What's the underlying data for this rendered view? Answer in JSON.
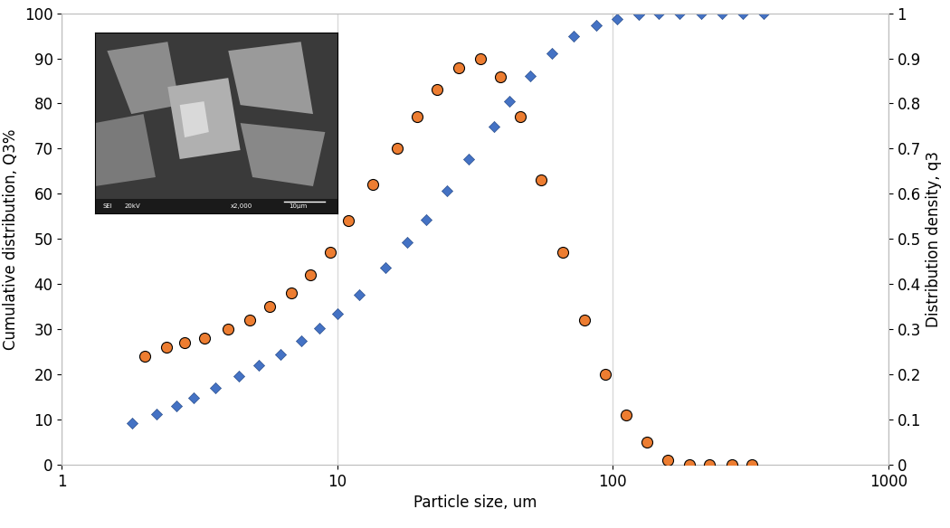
{
  "chart_data": {
    "type": "scatter",
    "x_label": "Particle size, um",
    "y_label": "Cumulative distribution, Q3%",
    "y2_label": "Distribution density, q3",
    "log": "x",
    "grid": "x",
    "xlim": [
      1,
      1000
    ],
    "xticks": [
      1,
      10,
      100,
      1000
    ],
    "ylim": [
      0,
      100
    ],
    "yticks": [
      0,
      10,
      20,
      30,
      40,
      50,
      60,
      70,
      80,
      90,
      100
    ],
    "y2lim": [
      0,
      1
    ],
    "y2ticks": [
      0,
      0.1,
      0.2,
      0.3,
      0.4,
      0.5,
      0.6,
      0.7,
      0.8,
      0.9,
      1
    ],
    "series": [
      {
        "color": "#4472c4",
        "marker": "diamond",
        "axis": "y",
        "x": [
          1.8,
          2.2,
          2.6,
          3.0,
          3.6,
          4.4,
          5.2,
          6.2,
          7.4,
          8.6,
          10,
          12,
          15,
          18,
          21,
          25,
          30,
          37,
          42,
          50,
          60,
          72,
          87,
          104,
          124,
          147,
          175,
          209,
          249,
          297,
          352
        ],
        "values": [
          9.2,
          11.2,
          13,
          14.8,
          17,
          19.6,
          22,
          24.5,
          27.5,
          30.2,
          33.5,
          37.7,
          43.7,
          49.2,
          54.3,
          60.6,
          67.6,
          74.8,
          80.4,
          86.2,
          91.2,
          94.9,
          97.4,
          98.8,
          99.7,
          100,
          100,
          100,
          100,
          100,
          100
        ]
      },
      {
        "color": "#ed7d31",
        "marker": "circle",
        "axis": "y2",
        "x": [
          2.0,
          2.4,
          2.8,
          3.3,
          4.0,
          4.8,
          5.7,
          6.8,
          8.0,
          9.4,
          11,
          13.5,
          16.5,
          19.5,
          23,
          27.5,
          33,
          39,
          46,
          55,
          66,
          79,
          94,
          112,
          133,
          158,
          190,
          225,
          270,
          320
        ],
        "values": [
          0.24,
          0.26,
          0.27,
          0.28,
          0.3,
          0.32,
          0.35,
          0.38,
          0.42,
          0.47,
          0.54,
          0.62,
          0.7,
          0.77,
          0.83,
          0.88,
          0.9,
          0.86,
          0.77,
          0.63,
          0.47,
          0.32,
          0.2,
          0.11,
          0.05,
          0.01,
          0,
          0,
          0,
          0
        ]
      }
    ],
    "inset_texts": [
      "SEI",
      "20kV",
      "x2,000",
      "10µm"
    ]
  }
}
